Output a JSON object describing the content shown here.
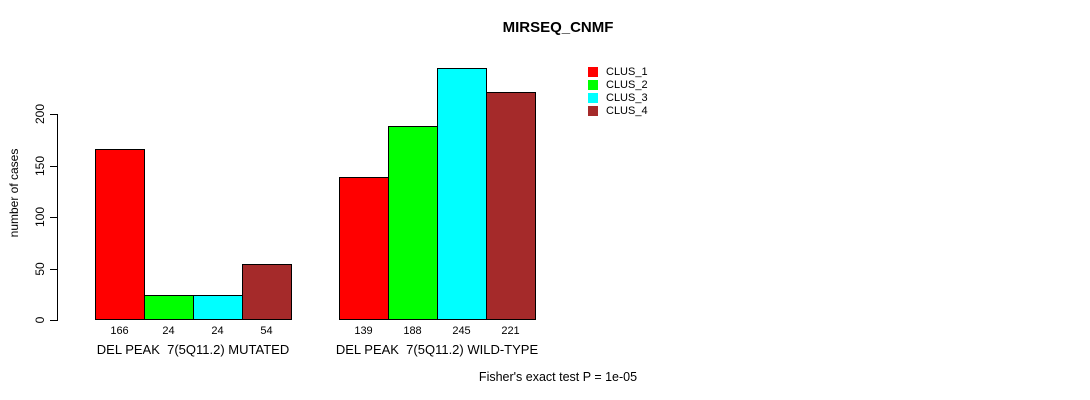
{
  "chart_data": {
    "type": "bar",
    "title": "MIRSEQ_CNMF",
    "ylabel": "number of cases",
    "footer": "Fisher's exact test P = 1e-05",
    "yticks": [
      0,
      50,
      100,
      150,
      200
    ],
    "ylim": [
      0,
      245
    ],
    "grid": false,
    "bar_value_labels": true,
    "legend_position": "top-right",
    "categories": [
      "DEL PEAK  7(5Q11.2) MUTATED",
      "DEL PEAK  7(5Q11.2) WILD-TYPE"
    ],
    "series": [
      {
        "name": "CLUS_1",
        "color": "#ff0000",
        "values": [
          166,
          139
        ]
      },
      {
        "name": "CLUS_2",
        "color": "#00ff00",
        "values": [
          24,
          188
        ]
      },
      {
        "name": "CLUS_3",
        "color": "#00ffff",
        "values": [
          24,
          245
        ]
      },
      {
        "name": "CLUS_4",
        "color": "#a52a2a",
        "values": [
          54,
          221
        ]
      }
    ]
  }
}
